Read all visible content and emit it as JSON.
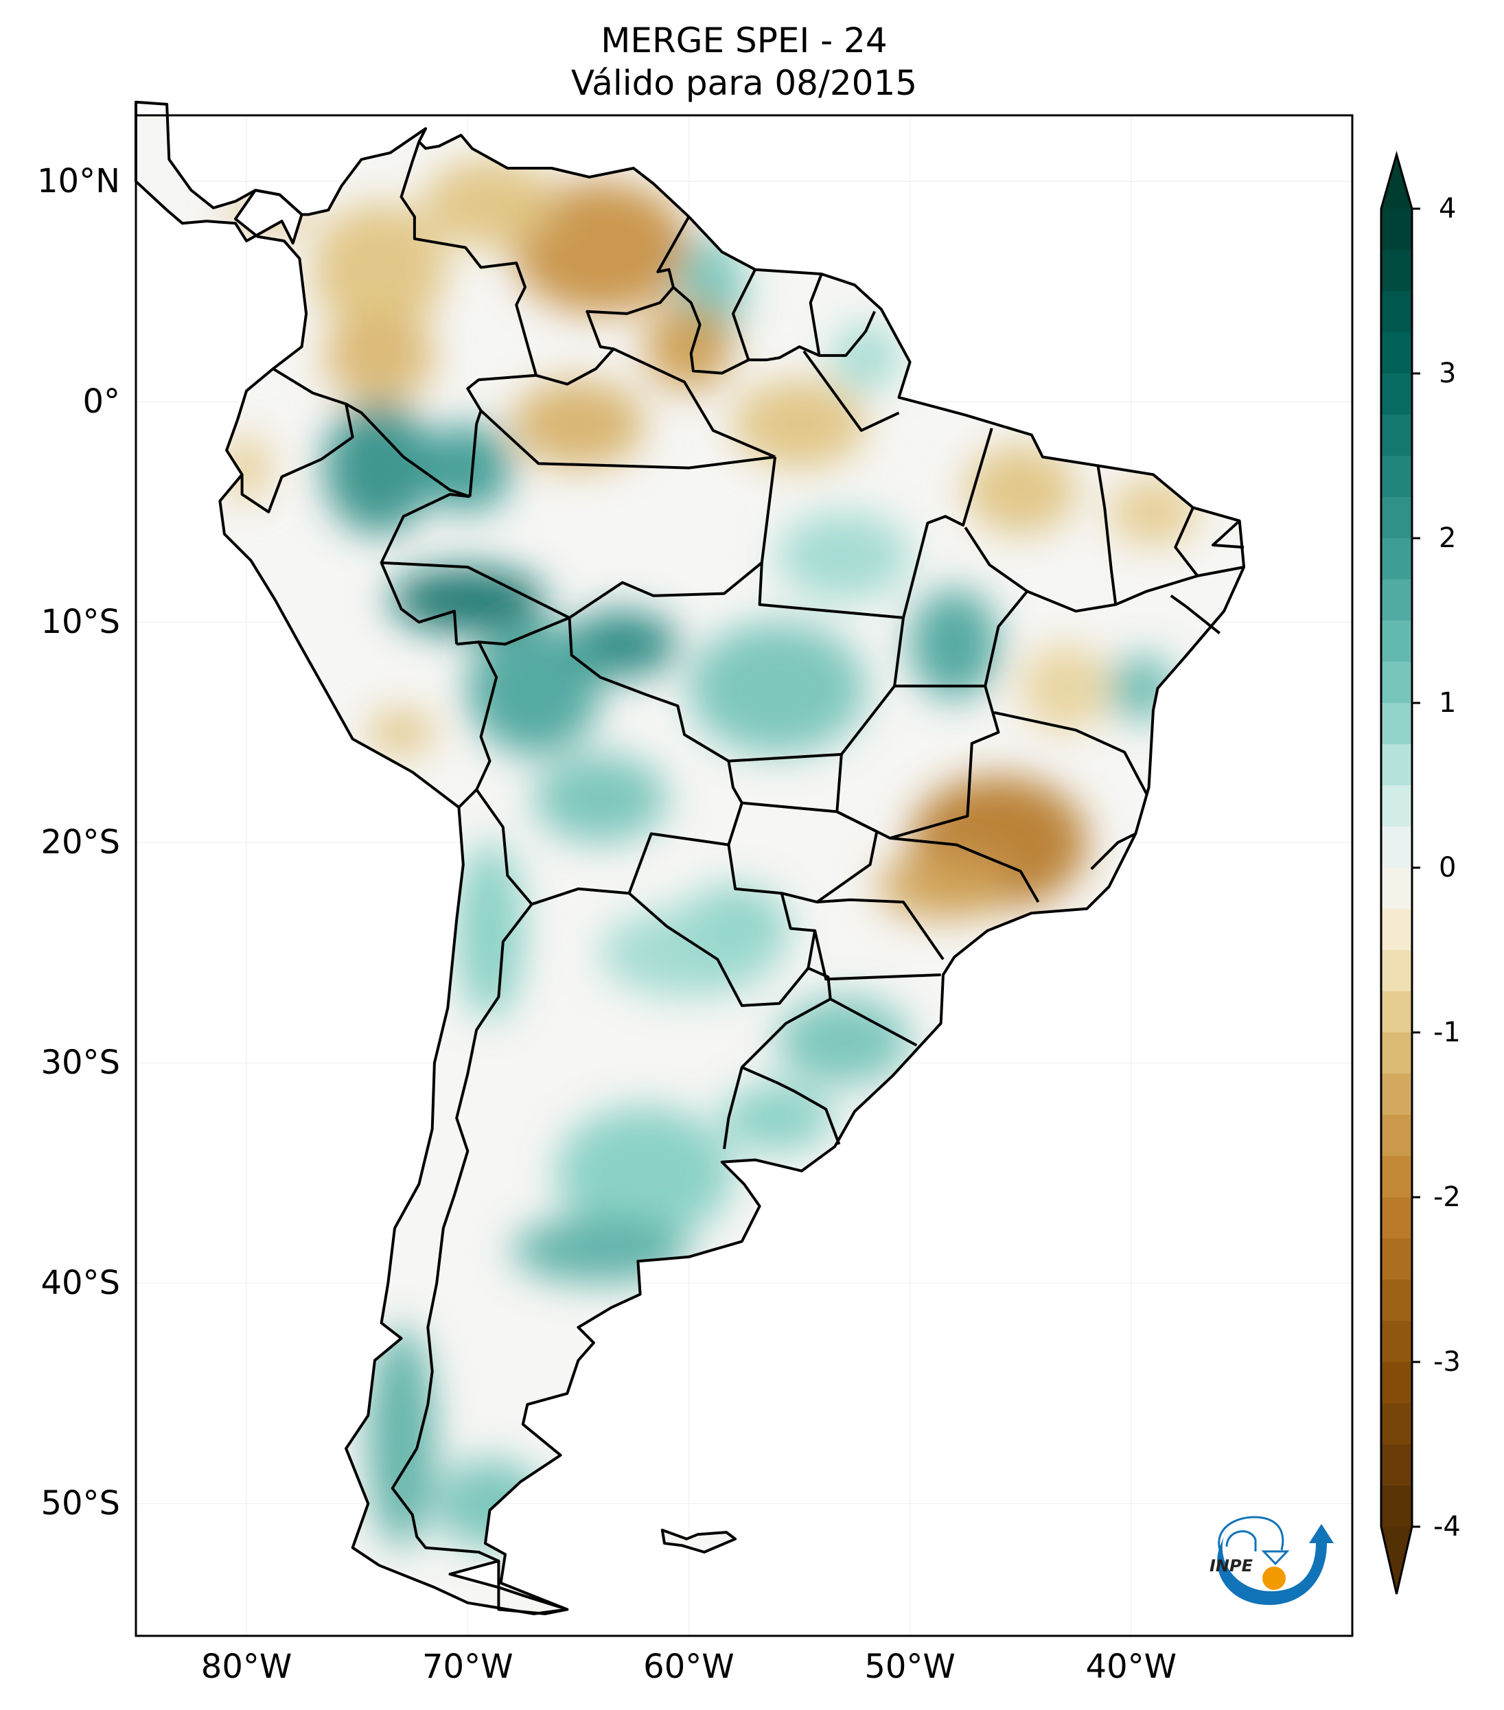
{
  "chart_data": {
    "type": "heatmap",
    "title": "MERGE   SPEI - 24",
    "subtitle": "Válido para 08/2015",
    "variable": "SPEI - 24",
    "dataset": "MERGE",
    "valid_period": "08/2015",
    "region": "South America",
    "xlabel": "",
    "ylabel": "",
    "lon_range": [
      -85,
      -30
    ],
    "lat_range": [
      -56,
      13
    ],
    "x_ticks": [
      {
        "value": -80,
        "label": "80°W"
      },
      {
        "value": -70,
        "label": "70°W"
      },
      {
        "value": -60,
        "label": "60°W"
      },
      {
        "value": -50,
        "label": "50°W"
      },
      {
        "value": -40,
        "label": "40°W"
      }
    ],
    "y_ticks": [
      {
        "value": 10,
        "label": "10°N"
      },
      {
        "value": 0,
        "label": "0°"
      },
      {
        "value": -10,
        "label": "10°S"
      },
      {
        "value": -20,
        "label": "20°S"
      },
      {
        "value": -30,
        "label": "30°S"
      },
      {
        "value": -40,
        "label": "40°S"
      },
      {
        "value": -50,
        "label": "50°S"
      }
    ],
    "colorbar": {
      "colormap": "BrBG",
      "range": [
        -4,
        4
      ],
      "extend": "both",
      "step": 0.25,
      "ticks": [
        {
          "value": 4,
          "label": "4"
        },
        {
          "value": 3,
          "label": "3"
        },
        {
          "value": 2,
          "label": "2"
        },
        {
          "value": 1,
          "label": "1"
        },
        {
          "value": 0,
          "label": "0"
        },
        {
          "value": -1,
          "label": "-1"
        },
        {
          "value": -2,
          "label": "-2"
        },
        {
          "value": -3,
          "label": "-3"
        },
        {
          "value": -4,
          "label": "-4"
        }
      ]
    },
    "patches": [
      {
        "name": "venezuela-east",
        "lon": -64,
        "lat": 7,
        "rx": 4,
        "ry": 3,
        "value": -1.8
      },
      {
        "name": "venezuela-north",
        "lon": -69,
        "lat": 9,
        "rx": 3,
        "ry": 2,
        "value": -1.0
      },
      {
        "name": "colombia-north",
        "lon": -74,
        "lat": 6,
        "rx": 3,
        "ry": 3,
        "value": -1.0
      },
      {
        "name": "colombia-south",
        "lon": -74,
        "lat": 2,
        "rx": 2.5,
        "ry": 2,
        "value": -1.2
      },
      {
        "name": "guyana",
        "lon": -59,
        "lat": 5,
        "rx": 1.5,
        "ry": 2.5,
        "value": 1.2
      },
      {
        "name": "guyana-south",
        "lon": -60,
        "lat": 2.5,
        "rx": 2,
        "ry": 2,
        "value": -1.6
      },
      {
        "name": "amapa",
        "lon": -52,
        "lat": 2,
        "rx": 1.5,
        "ry": 1.5,
        "value": 0.8
      },
      {
        "name": "para-north",
        "lon": -55,
        "lat": -1,
        "rx": 3,
        "ry": 2,
        "value": -1.0
      },
      {
        "name": "amazonas-north",
        "lon": -65,
        "lat": -1,
        "rx": 3,
        "ry": 2,
        "value": -1.3
      },
      {
        "name": "ecuador-peru",
        "lon": -74,
        "lat": -3,
        "rx": 2.5,
        "ry": 3,
        "value": 2.2
      },
      {
        "name": "amazonas-west",
        "lon": -70,
        "lat": -3,
        "rx": 2,
        "ry": 2,
        "value": 2.0
      },
      {
        "name": "acre",
        "lon": -70,
        "lat": -9,
        "rx": 3.5,
        "ry": 1.5,
        "value": 2.8
      },
      {
        "name": "rondonia",
        "lon": -63,
        "lat": -11,
        "rx": 2.5,
        "ry": 1.5,
        "value": 2.4
      },
      {
        "name": "bolivia-north",
        "lon": -67,
        "lat": -13,
        "rx": 3,
        "ry": 3,
        "value": 1.8
      },
      {
        "name": "bolivia-south",
        "lon": -64,
        "lat": -18,
        "rx": 3,
        "ry": 2,
        "value": 1.2
      },
      {
        "name": "mato-grosso",
        "lon": -56,
        "lat": -13,
        "rx": 4,
        "ry": 3,
        "value": 1.2
      },
      {
        "name": "tocantins",
        "lon": -48,
        "lat": -11,
        "rx": 2,
        "ry": 2.5,
        "value": 1.8
      },
      {
        "name": "para-south",
        "lon": -53,
        "lat": -7,
        "rx": 3,
        "ry": 2,
        "value": 0.8
      },
      {
        "name": "maranhao",
        "lon": -45,
        "lat": -4,
        "rx": 2.5,
        "ry": 2,
        "value": -1.0
      },
      {
        "name": "ceara",
        "lon": -39,
        "lat": -5,
        "rx": 2,
        "ry": 1.5,
        "value": -0.9
      },
      {
        "name": "bahia-west",
        "lon": -43,
        "lat": -13,
        "rx": 2,
        "ry": 2,
        "value": -0.8
      },
      {
        "name": "bahia-coast",
        "lon": -39.5,
        "lat": -13,
        "rx": 1.5,
        "ry": 1.5,
        "value": 1.4
      },
      {
        "name": "minas-sp",
        "lon": -46,
        "lat": -20,
        "rx": 4,
        "ry": 3,
        "value": -2.2
      },
      {
        "name": "sao-paulo",
        "lon": -48.5,
        "lat": -22,
        "rx": 3,
        "ry": 1.5,
        "value": -1.5
      },
      {
        "name": "paraguay",
        "lon": -58,
        "lat": -24,
        "rx": 2.5,
        "ry": 2,
        "value": 1.0
      },
      {
        "name": "chaco",
        "lon": -60,
        "lat": -25,
        "rx": 4,
        "ry": 2,
        "value": 0.8
      },
      {
        "name": "rio-grande-sul",
        "lon": -53,
        "lat": -29,
        "rx": 3,
        "ry": 2,
        "value": 1.2
      },
      {
        "name": "uruguay",
        "lon": -56,
        "lat": -32.5,
        "rx": 2.5,
        "ry": 1.5,
        "value": 1.0
      },
      {
        "name": "pampas",
        "lon": -62,
        "lat": -35,
        "rx": 4,
        "ry": 3,
        "value": 1.0
      },
      {
        "name": "buenos-aires-south",
        "lon": -64,
        "lat": -38.5,
        "rx": 4,
        "ry": 1.5,
        "value": 1.6
      },
      {
        "name": "chile-north",
        "lon": -69,
        "lat": -24,
        "rx": 1.5,
        "ry": 4,
        "value": 1.0
      },
      {
        "name": "patagonia-west",
        "lon": -73,
        "lat": -47,
        "rx": 1.5,
        "ry": 5,
        "value": 1.6
      },
      {
        "name": "patagonia-south",
        "lon": -69,
        "lat": -50,
        "rx": 2.5,
        "ry": 2,
        "value": 1.2
      },
      {
        "name": "peru-south",
        "lon": -73,
        "lat": -15,
        "rx": 1.5,
        "ry": 1,
        "value": -1.0
      },
      {
        "name": "ecuador-coast",
        "lon": -80,
        "lat": -3,
        "rx": 1,
        "ry": 1.5,
        "value": -0.9
      },
      {
        "name": "panama",
        "lon": -79,
        "lat": 8.5,
        "rx": 2,
        "ry": 0.6,
        "value": -1.2
      }
    ]
  },
  "logo": {
    "text": "INPE",
    "blue": "#1173b8",
    "orange": "#f39a00"
  }
}
